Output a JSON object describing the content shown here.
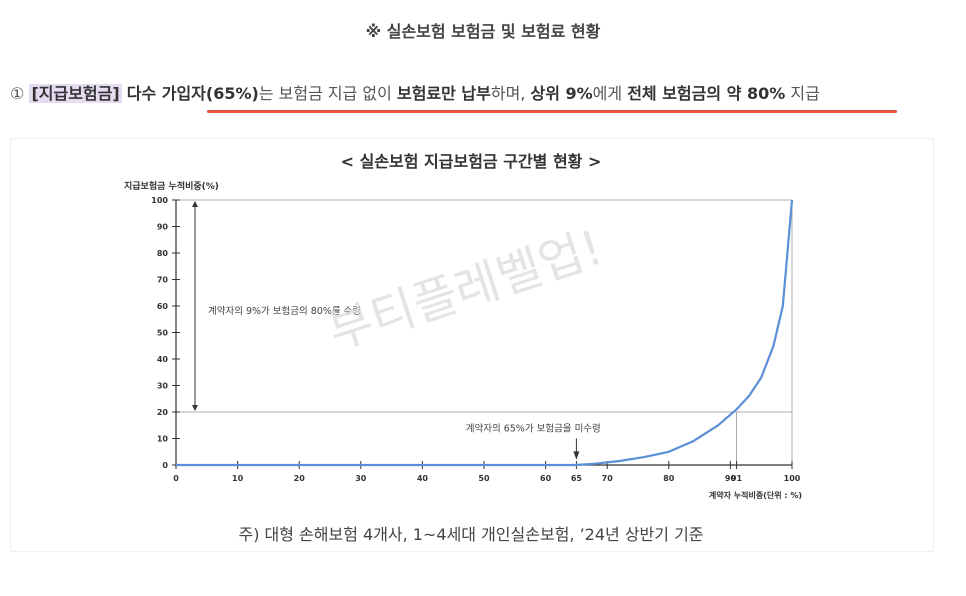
{
  "heading": "※ 실손보험 보험금 및 보험료 현황",
  "summary": {
    "num": "①",
    "tag": "[지급보험금]",
    "p1": "다수 가입자(65%)",
    "p2": "는 보험금 지급 없이 ",
    "p3": "보험료만 납부",
    "p4": "하며, ",
    "p5": "상위 9%",
    "p6": "에게 ",
    "p7": "전체 보험금의 약 80%",
    "p8": " 지급"
  },
  "watermark": "부티플레벨업!",
  "footnote": "주) 대형 손해보험 4개사, 1~4세대 개인실손보험, ’24년 상반기 기준",
  "colors": {
    "curve": "#5b8fd6",
    "underline": "#e8553f",
    "tag_bg": "#e6dcf2"
  },
  "chart_data": {
    "type": "line",
    "title": "< 실손보험 지급보험금 구간별 현황 >",
    "ylabel": "지급보험금 누적비중(%)",
    "xlabel": "계약자 누적비중(단위 : %)",
    "xlim": [
      0,
      100
    ],
    "ylim": [
      0,
      100
    ],
    "x_ticks": [
      0,
      10,
      20,
      30,
      40,
      50,
      60,
      65,
      70,
      80,
      90,
      91,
      100
    ],
    "y_ticks": [
      0,
      10,
      20,
      30,
      40,
      50,
      60,
      70,
      80,
      90,
      100
    ],
    "grid": false,
    "series": [
      {
        "x": [
          0,
          65,
          68,
          72,
          76,
          80,
          84,
          88,
          91,
          93,
          95,
          97,
          98.5,
          100
        ],
        "values": [
          0,
          0,
          0.5,
          1.5,
          3,
          5,
          9,
          15,
          21,
          26,
          33,
          45,
          60,
          100
        ]
      }
    ],
    "annotations": {
      "top9": "계약자의 9%가 보험금의 80%를 수령",
      "bottom65": "계약자의 65%가 보험금을 미수령"
    }
  }
}
